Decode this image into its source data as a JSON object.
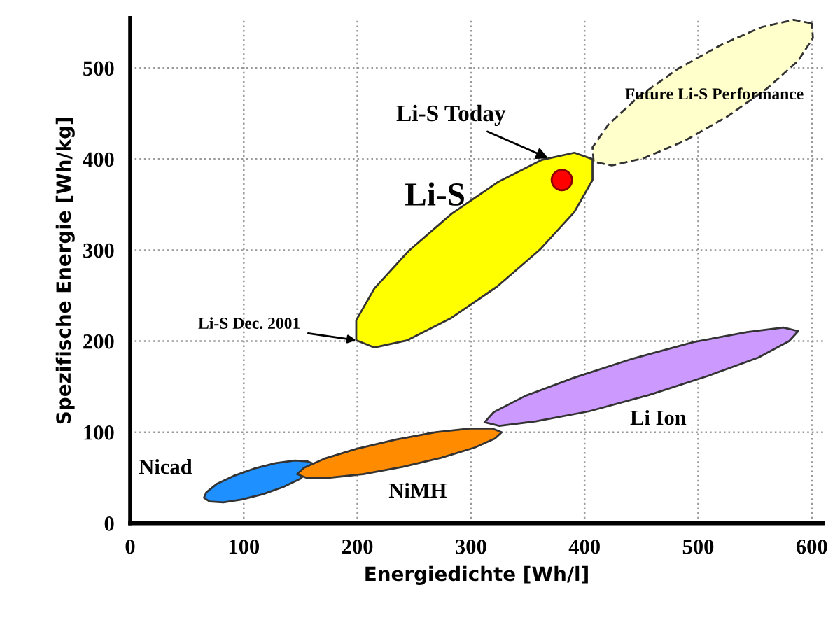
{
  "chart_data": {
    "type": "area",
    "xlabel": "Energiedichte [Wh/l]",
    "ylabel": "Spezifische Energie [Wh/kg]",
    "xlim": [
      0,
      610
    ],
    "ylim": [
      0,
      555
    ],
    "xticks": [
      0,
      100,
      200,
      300,
      400,
      500,
      600
    ],
    "yticks": [
      0,
      100,
      200,
      300,
      400,
      500
    ],
    "grid": true,
    "legend": false,
    "series": [
      {
        "color": "#1e90ff",
        "x": [
          162,
          156,
          145,
          128,
          109,
          91,
          76,
          67,
          65,
          70,
          82,
          98,
          117,
          135,
          150
        ],
        "values": [
          65,
          68,
          69,
          66,
          60,
          52,
          43,
          34,
          28,
          24,
          23,
          26,
          32,
          40,
          49
        ]
      },
      {
        "color": "#ff8c00",
        "x": [
          327,
          319,
          299,
          269,
          234,
          200,
          171,
          153,
          147,
          155,
          176,
          205,
          240,
          274,
          303,
          321
        ],
        "values": [
          100,
          104,
          104,
          100,
          92,
          82,
          71,
          61,
          54,
          50,
          50,
          54,
          62,
          72,
          83,
          93
        ]
      },
      {
        "color": "#cc99ff",
        "x": [
          588,
          575,
          543,
          496,
          443,
          391,
          348,
          320,
          312,
          325,
          357,
          404,
          457,
          509,
          553,
          580
        ],
        "values": [
          211,
          215,
          210,
          199,
          181,
          160,
          140,
          122,
          111,
          107,
          112,
          123,
          141,
          162,
          182,
          200
        ]
      },
      {
        "color": "#ffff00",
        "x": [
          407,
          391,
          362,
          324,
          283,
          245,
          215,
          199,
          199,
          215,
          244,
          282,
          323,
          361,
          391,
          407
        ],
        "values": [
          400,
          407,
          399,
          375,
          340,
          299,
          258,
          223,
          201,
          193,
          201,
          225,
          260,
          301,
          342,
          377
        ]
      },
      {
        "color": "#ffffcc",
        "line_style": "dashed",
        "x": [
          600,
          584,
          556,
          521,
          482,
          447,
          421,
          407,
          408,
          424,
          452,
          488,
          526,
          561,
          588,
          601
        ],
        "values": [
          549,
          553,
          545,
          526,
          499,
          468,
          438,
          413,
          397,
          393,
          401,
          420,
          447,
          478,
          508,
          533
        ]
      },
      {
        "type": "scatter",
        "color": "#ff0000",
        "marker": "circle",
        "x": [
          380
        ],
        "values": [
          377
        ]
      }
    ],
    "annotations": [
      "Nicad",
      "NiMH",
      "Li Ion",
      "Li-S",
      "Future Li-S Performance",
      {
        "text": "Li-S Today",
        "x": 368,
        "y": 401
      },
      {
        "text": "Li-S Dec. 2001",
        "x": 199,
        "y": 201
      }
    ]
  }
}
